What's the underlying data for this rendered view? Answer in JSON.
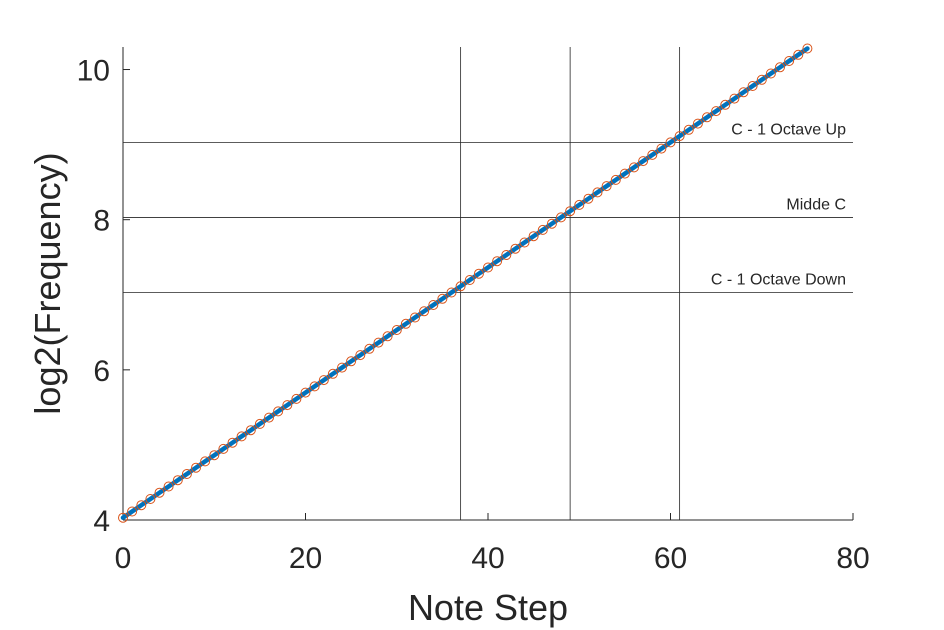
{
  "chart_data": {
    "type": "line",
    "title": "",
    "xlabel": "Note Step",
    "ylabel": "log2(Frequency)",
    "xlim": [
      0,
      80
    ],
    "ylim": [
      4,
      10.3
    ],
    "xticks": [
      0,
      20,
      40,
      60,
      80
    ],
    "yticks": [
      4,
      6,
      8,
      10
    ],
    "xtick_labels": [
      "0",
      "20",
      "40",
      "60",
      "80"
    ],
    "ytick_labels": [
      "4",
      "6",
      "8",
      "10"
    ],
    "grid": false,
    "series": [
      {
        "x_start": 0,
        "x_end": 75,
        "x_step": 1,
        "y_start": 4.03,
        "y_end": 10.28,
        "line_color": "#0072bd",
        "marker": "circle",
        "marker_color": "#d95319"
      }
    ],
    "vertical_lines": [
      37,
      49,
      61
    ],
    "horizontal_lines": [
      {
        "y": 9.03,
        "label": "C - 1 Octave Up"
      },
      {
        "y": 8.03,
        "label": "Midde C"
      },
      {
        "y": 7.03,
        "label": "C - 1 Octave Down"
      }
    ]
  }
}
